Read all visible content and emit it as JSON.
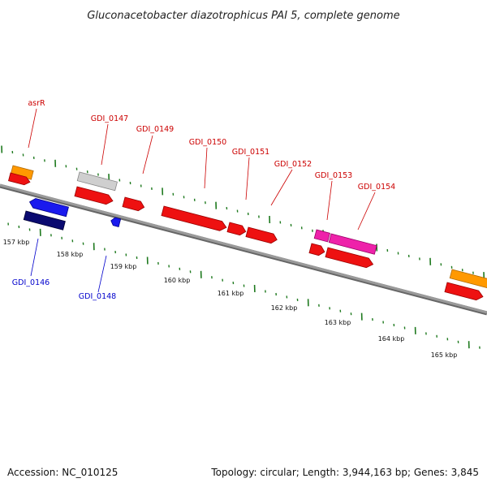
{
  "title": "Gluconacetobacter diazotrophicus PAI 5, complete genome",
  "accession": "Accession: NC_010125",
  "summary": "Topology: circular; Length: 3,944,163 bp; Genes: 3,845",
  "colors": {
    "backbone": "#8a8a8a",
    "tick": "#1f7a1f",
    "label_red": "#cc0000",
    "label_blue": "#0000cc",
    "red": "#ee1111",
    "orange": "#ff9900",
    "gray": "#c8c8c8",
    "blue": "#1a1aee",
    "navy": "#0a0a70",
    "magenta": "#ee22aa"
  },
  "scale_labels": [
    "157 kbp",
    "158 kbp",
    "159 kbp",
    "160 kbp",
    "161 kbp",
    "162 kbp",
    "163 kbp",
    "164 kbp",
    "165 kbp"
  ],
  "genes_top": [
    "asrR",
    "GDI_0147",
    "GDI_0149",
    "GDI_0150",
    "GDI_0151",
    "GDI_0152",
    "GDI_0153",
    "GDI_0154"
  ],
  "genes_bottom": [
    "GDI_0146",
    "GDI_0148"
  ]
}
